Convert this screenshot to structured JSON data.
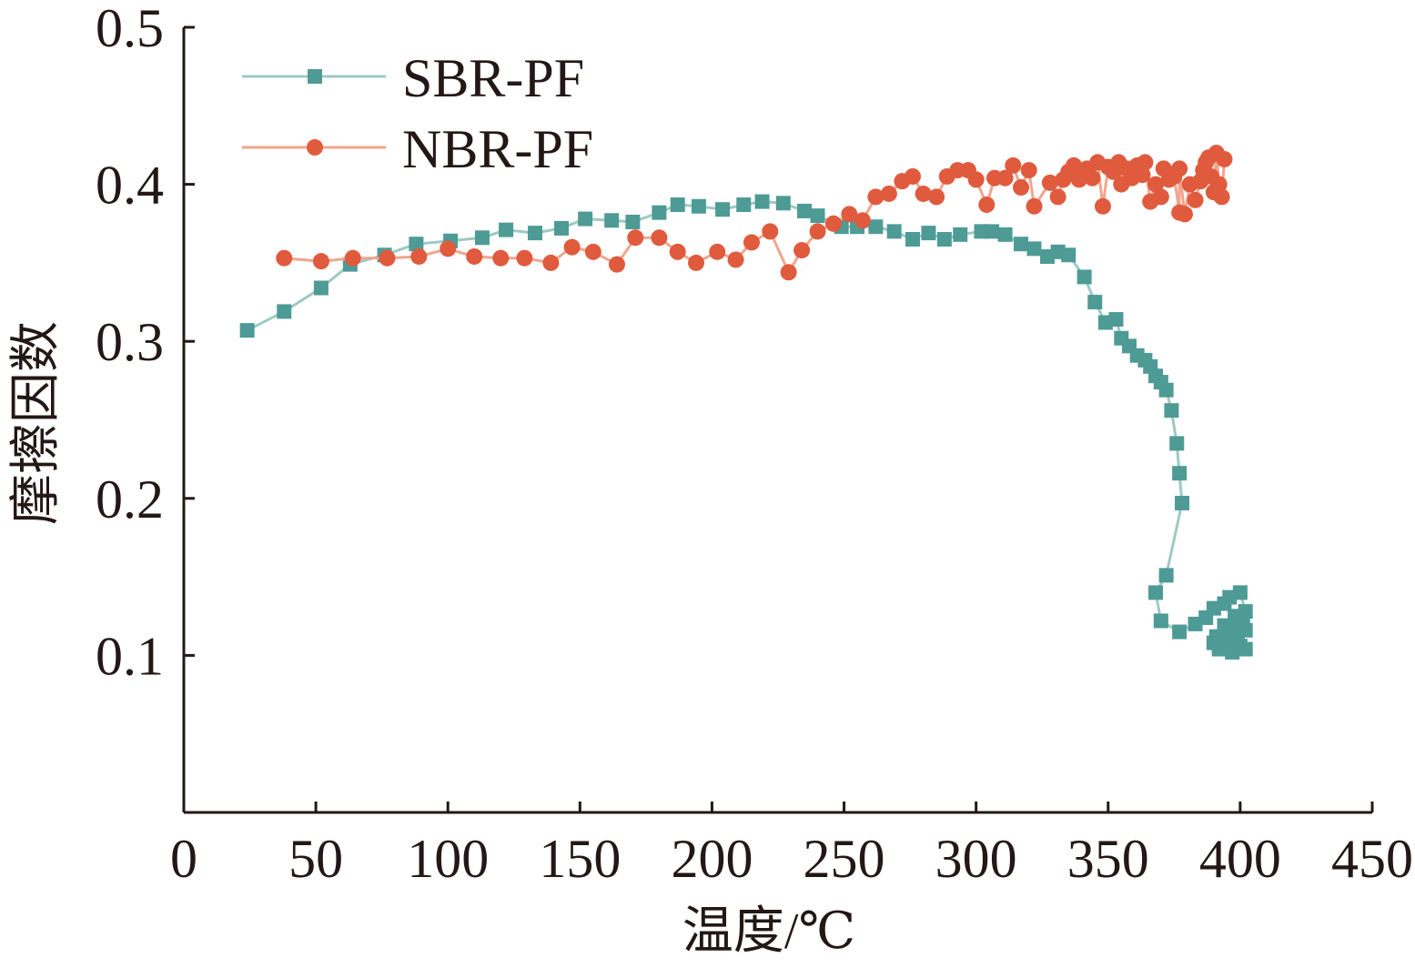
{
  "chart_data": {
    "type": "line",
    "xlabel": "温度/℃",
    "ylabel": "摩擦因数",
    "xlim": [
      0,
      450
    ],
    "ylim": [
      0,
      0.5
    ],
    "x_ticks": [
      "0",
      "50",
      "100",
      "150",
      "200",
      "250",
      "300",
      "350",
      "400",
      "450"
    ],
    "y_ticks": [
      "0.1",
      "0.2",
      "0.3",
      "0.4",
      "0.5"
    ],
    "legend_position": "top-left",
    "grid": false,
    "series": [
      {
        "name": "SBR-PF",
        "color": "#4e9b95",
        "line_color": "#9fc9c3",
        "marker": "square",
        "points": [
          [
            24,
            0.307
          ],
          [
            38,
            0.319
          ],
          [
            52,
            0.334
          ],
          [
            63,
            0.349
          ],
          [
            76,
            0.355
          ],
          [
            88,
            0.362
          ],
          [
            101,
            0.364
          ],
          [
            113,
            0.366
          ],
          [
            122,
            0.371
          ],
          [
            133,
            0.369
          ],
          [
            143,
            0.372
          ],
          [
            152,
            0.378
          ],
          [
            162,
            0.377
          ],
          [
            170,
            0.376
          ],
          [
            180,
            0.382
          ],
          [
            187,
            0.387
          ],
          [
            195,
            0.386
          ],
          [
            204,
            0.384
          ],
          [
            212,
            0.387
          ],
          [
            219,
            0.389
          ],
          [
            227,
            0.388
          ],
          [
            235,
            0.383
          ],
          [
            240,
            0.38
          ],
          [
            249,
            0.373
          ],
          [
            255,
            0.373
          ],
          [
            262,
            0.373
          ],
          [
            269,
            0.37
          ],
          [
            276,
            0.365
          ],
          [
            282,
            0.369
          ],
          [
            288,
            0.365
          ],
          [
            294,
            0.368
          ],
          [
            302,
            0.37
          ],
          [
            306,
            0.37
          ],
          [
            311,
            0.368
          ],
          [
            317,
            0.362
          ],
          [
            322,
            0.359
          ],
          [
            327,
            0.354
          ],
          [
            331,
            0.357
          ],
          [
            335,
            0.355
          ],
          [
            341,
            0.341
          ],
          [
            345,
            0.325
          ],
          [
            349,
            0.312
          ],
          [
            353,
            0.314
          ],
          [
            355,
            0.302
          ],
          [
            358,
            0.297
          ],
          [
            361,
            0.291
          ],
          [
            364,
            0.288
          ],
          [
            366,
            0.284
          ],
          [
            368,
            0.278
          ],
          [
            370,
            0.274
          ],
          [
            372,
            0.269
          ],
          [
            374,
            0.256
          ],
          [
            376,
            0.235
          ],
          [
            377,
            0.216
          ],
          [
            378,
            0.197
          ],
          [
            372,
            0.151
          ],
          [
            368,
            0.14
          ],
          [
            370,
            0.122
          ],
          [
            377,
            0.115
          ],
          [
            383,
            0.12
          ],
          [
            387,
            0.124
          ],
          [
            390,
            0.13
          ],
          [
            394,
            0.133
          ],
          [
            396,
            0.137
          ],
          [
            400,
            0.14
          ],
          [
            402,
            0.128
          ],
          [
            398,
            0.125
          ],
          [
            394,
            0.119
          ],
          [
            391,
            0.112
          ],
          [
            395,
            0.105
          ],
          [
            399,
            0.11
          ],
          [
            402,
            0.116
          ],
          [
            397,
            0.102
          ],
          [
            392,
            0.104
          ],
          [
            400,
            0.106
          ],
          [
            402,
            0.104
          ],
          [
            395,
            0.111
          ],
          [
            390,
            0.108
          ],
          [
            398,
            0.118
          ],
          [
            401,
            0.121
          ]
        ]
      },
      {
        "name": "NBR-PF",
        "color": "#e05a3d",
        "line_color": "#f1a58e",
        "marker": "circle",
        "points": [
          [
            38,
            0.353
          ],
          [
            52,
            0.351
          ],
          [
            64,
            0.353
          ],
          [
            77,
            0.353
          ],
          [
            89,
            0.354
          ],
          [
            100,
            0.359
          ],
          [
            110,
            0.354
          ],
          [
            120,
            0.353
          ],
          [
            129,
            0.353
          ],
          [
            139,
            0.35
          ],
          [
            147,
            0.36
          ],
          [
            155,
            0.357
          ],
          [
            164,
            0.349
          ],
          [
            171,
            0.366
          ],
          [
            180,
            0.366
          ],
          [
            187,
            0.357
          ],
          [
            194,
            0.35
          ],
          [
            202,
            0.357
          ],
          [
            209,
            0.352
          ],
          [
            215,
            0.363
          ],
          [
            222,
            0.37
          ],
          [
            229,
            0.344
          ],
          [
            234,
            0.358
          ],
          [
            240,
            0.37
          ],
          [
            246,
            0.375
          ],
          [
            252,
            0.381
          ],
          [
            257,
            0.377
          ],
          [
            262,
            0.392
          ],
          [
            267,
            0.394
          ],
          [
            272,
            0.402
          ],
          [
            276,
            0.405
          ],
          [
            280,
            0.394
          ],
          [
            285,
            0.392
          ],
          [
            289,
            0.405
          ],
          [
            293,
            0.409
          ],
          [
            297,
            0.409
          ],
          [
            300,
            0.403
          ],
          [
            304,
            0.387
          ],
          [
            307,
            0.404
          ],
          [
            311,
            0.404
          ],
          [
            314,
            0.412
          ],
          [
            317,
            0.398
          ],
          [
            320,
            0.409
          ],
          [
            322,
            0.386
          ],
          [
            328,
            0.401
          ],
          [
            331,
            0.392
          ],
          [
            333,
            0.403
          ],
          [
            335,
            0.408
          ],
          [
            337,
            0.412
          ],
          [
            339,
            0.403
          ],
          [
            342,
            0.41
          ],
          [
            344,
            0.404
          ],
          [
            346,
            0.414
          ],
          [
            348,
            0.386
          ],
          [
            350,
            0.411
          ],
          [
            352,
            0.408
          ],
          [
            354,
            0.414
          ],
          [
            355,
            0.4
          ],
          [
            357,
            0.41
          ],
          [
            359,
            0.404
          ],
          [
            361,
            0.412
          ],
          [
            363,
            0.406
          ],
          [
            364,
            0.414
          ],
          [
            366,
            0.389
          ],
          [
            368,
            0.4
          ],
          [
            370,
            0.392
          ],
          [
            371,
            0.41
          ],
          [
            373,
            0.403
          ],
          [
            375,
            0.405
          ],
          [
            377,
            0.382
          ],
          [
            377,
            0.41
          ],
          [
            379,
            0.381
          ],
          [
            381,
            0.4
          ],
          [
            383,
            0.39
          ],
          [
            385,
            0.402
          ],
          [
            386,
            0.409
          ],
          [
            387,
            0.414
          ],
          [
            388,
            0.417
          ],
          [
            389,
            0.405
          ],
          [
            390,
            0.395
          ],
          [
            391,
            0.42
          ],
          [
            392,
            0.4
          ],
          [
            393,
            0.392
          ],
          [
            394,
            0.416
          ]
        ]
      }
    ]
  }
}
